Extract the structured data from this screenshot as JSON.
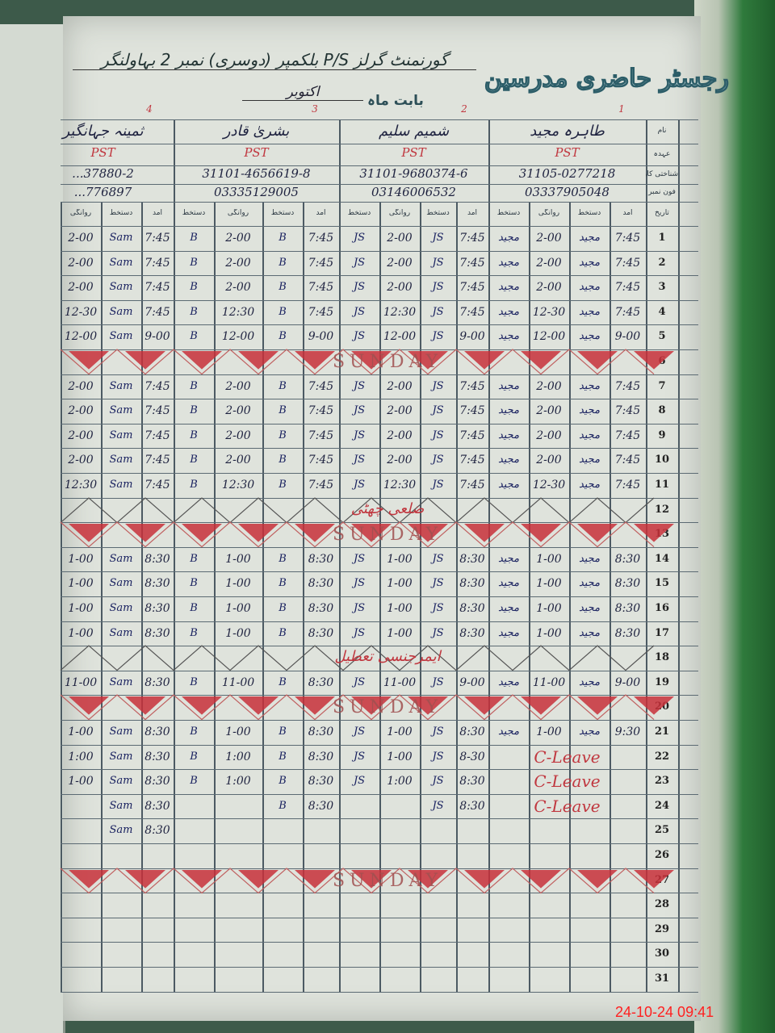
{
  "register": {
    "title": "رجسٹر حاضری مدرسین",
    "school": "گورنمنٹ گرلز P/S بلکمپر (دوسری) نمبر 2 بہاولنگر",
    "month_label": "بابت ماہ",
    "month": "اکتوبر",
    "row_labels": {
      "name": "نام",
      "designation": "عہدہ",
      "cnic": "شناختی کارڈ نمبر",
      "phone": "فون نمبر",
      "date": "تاریخ"
    },
    "column_labels": {
      "arrival": "آمد",
      "signature": "دستخط",
      "departure": "روانگی"
    }
  },
  "teachers": [
    {
      "number": "1",
      "name": "طاہرہ مجید",
      "designation": "PST",
      "cnic": "31105-0277218",
      "phone": "03337905048",
      "signature": "مجید"
    },
    {
      "number": "2",
      "name": "شمیم سلیم",
      "designation": "PST",
      "cnic": "31101-9680374-6",
      "phone": "03146006532",
      "signature": "JS"
    },
    {
      "number": "3",
      "name": "بشریٰ قادر",
      "designation": "PST",
      "cnic": "31101-4656619-8",
      "phone": "03335129005",
      "signature": "B"
    },
    {
      "number": "4",
      "name": "ثمینہ جہانگیر",
      "designation": "PST",
      "cnic": "...37880-2",
      "phone": "...776897",
      "signature": "Sam"
    }
  ],
  "days": [
    {
      "day": "1",
      "entries": [
        [
          "7:45",
          "2-00"
        ],
        [
          "7:45",
          "2-00"
        ],
        [
          "7:45",
          "2-00"
        ],
        [
          "7:45",
          "2-00"
        ]
      ]
    },
    {
      "day": "2",
      "entries": [
        [
          "7:45",
          "2-00"
        ],
        [
          "7:45",
          "2-00"
        ],
        [
          "7:45",
          "2-00"
        ],
        [
          "7:45",
          "2-00"
        ]
      ]
    },
    {
      "day": "3",
      "entries": [
        [
          "7:45",
          "2-00"
        ],
        [
          "7:45",
          "2-00"
        ],
        [
          "7:45",
          "2-00"
        ],
        [
          "7:45",
          "2-00"
        ]
      ]
    },
    {
      "day": "4",
      "entries": [
        [
          "7:45",
          "12-30"
        ],
        [
          "7:45",
          "12:30"
        ],
        [
          "7:45",
          "12:30"
        ],
        [
          "7:45",
          "12-30"
        ]
      ]
    },
    {
      "day": "5",
      "entries": [
        [
          "9-00",
          "12-00"
        ],
        [
          "9-00",
          "12-00"
        ],
        [
          "9-00",
          "12-00"
        ],
        [
          "9-00",
          "12-00"
        ]
      ]
    },
    {
      "day": "6",
      "note": "SUNDAY",
      "sunday": true
    },
    {
      "day": "7",
      "entries": [
        [
          "7:45",
          "2-00"
        ],
        [
          "7:45",
          "2-00"
        ],
        [
          "7:45",
          "2-00"
        ],
        [
          "7:45",
          "2-00"
        ]
      ]
    },
    {
      "day": "8",
      "entries": [
        [
          "7:45",
          "2-00"
        ],
        [
          "7:45",
          "2-00"
        ],
        [
          "7:45",
          "2-00"
        ],
        [
          "7:45",
          "2-00"
        ]
      ]
    },
    {
      "day": "9",
      "entries": [
        [
          "7:45",
          "2-00"
        ],
        [
          "7:45",
          "2-00"
        ],
        [
          "7:45",
          "2-00"
        ],
        [
          "7:45",
          "2-00"
        ]
      ]
    },
    {
      "day": "10",
      "entries": [
        [
          "7:45",
          "2-00"
        ],
        [
          "7:45",
          "2-00"
        ],
        [
          "7:45",
          "2-00"
        ],
        [
          "7:45",
          "2-00"
        ]
      ]
    },
    {
      "day": "11",
      "entries": [
        [
          "7:45",
          "12-30"
        ],
        [
          "7:45",
          "12:30"
        ],
        [
          "7:45",
          "12:30"
        ],
        [
          "7:45",
          "12:30"
        ]
      ]
    },
    {
      "day": "12",
      "note": "ضلعی چھٹی",
      "holiday": true
    },
    {
      "day": "13",
      "note": "SUNDAY",
      "sunday": true
    },
    {
      "day": "14",
      "entries": [
        [
          "8:30",
          "1-00"
        ],
        [
          "8:30",
          "1-00"
        ],
        [
          "8:30",
          "1-00"
        ],
        [
          "8:30",
          "1-00"
        ]
      ]
    },
    {
      "day": "15",
      "entries": [
        [
          "8:30",
          "1-00"
        ],
        [
          "8:30",
          "1-00"
        ],
        [
          "8:30",
          "1-00"
        ],
        [
          "8:30",
          "1-00"
        ]
      ]
    },
    {
      "day": "16",
      "entries": [
        [
          "8:30",
          "1-00"
        ],
        [
          "8:30",
          "1-00"
        ],
        [
          "8:30",
          "1-00"
        ],
        [
          "8:30",
          "1-00"
        ]
      ]
    },
    {
      "day": "17",
      "entries": [
        [
          "8:30",
          "1-00"
        ],
        [
          "8:30",
          "1-00"
        ],
        [
          "8:30",
          "1-00"
        ],
        [
          "8:30",
          "1-00"
        ]
      ]
    },
    {
      "day": "18",
      "note": "ایمرجنسی تعطیل",
      "holiday": true
    },
    {
      "day": "19",
      "entries": [
        [
          "9-00",
          "11-00"
        ],
        [
          "9-00",
          "11-00"
        ],
        [
          "8:30",
          "11-00"
        ],
        [
          "8:30",
          "11-00"
        ]
      ]
    },
    {
      "day": "20",
      "note": "SUNDAY",
      "sunday": true
    },
    {
      "day": "21",
      "entries": [
        [
          "9:30",
          "1-00"
        ],
        [
          "8:30",
          "1-00"
        ],
        [
          "8:30",
          "1-00"
        ],
        [
          "8:30",
          "1-00"
        ]
      ]
    },
    {
      "day": "22",
      "leave": "C-Leave",
      "entries": [
        null,
        [
          "8-30",
          "1-00"
        ],
        [
          "8:30",
          "1:00"
        ],
        [
          "8:30",
          "1:00"
        ]
      ]
    },
    {
      "day": "23",
      "leave": "C-Leave",
      "entries": [
        null,
        [
          "8:30",
          "1:00"
        ],
        [
          "8:30",
          "1:00"
        ],
        [
          "8:30",
          "1-00"
        ]
      ]
    },
    {
      "day": "24",
      "leave": "C-Leave",
      "entries": [
        null,
        [
          "8:30",
          ""
        ],
        [
          "8:30",
          ""
        ],
        [
          "8:30",
          ""
        ]
      ]
    },
    {
      "day": "25",
      "entries": [
        null,
        null,
        null,
        [
          "8:30",
          ""
        ]
      ]
    },
    {
      "day": "26"
    },
    {
      "day": "27",
      "note": "SUNDAY",
      "sunday": true
    },
    {
      "day": "28"
    },
    {
      "day": "29"
    },
    {
      "day": "30"
    },
    {
      "day": "31"
    }
  ],
  "camera_timestamp": "24-10-24  09:41",
  "colors": {
    "ink_blue": "#1a2260",
    "ink_red": "#c0373f",
    "sunday_fill": "#c8303a",
    "grid": "#4c5a63"
  }
}
